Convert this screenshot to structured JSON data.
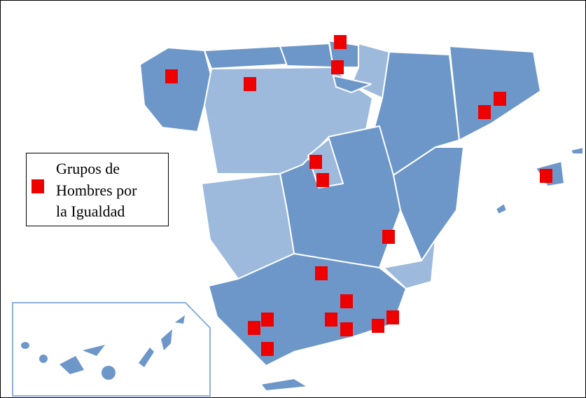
{
  "legend": {
    "lines": [
      "Grupos de",
      "Hombres por",
      "la Igualdad"
    ]
  }
}
